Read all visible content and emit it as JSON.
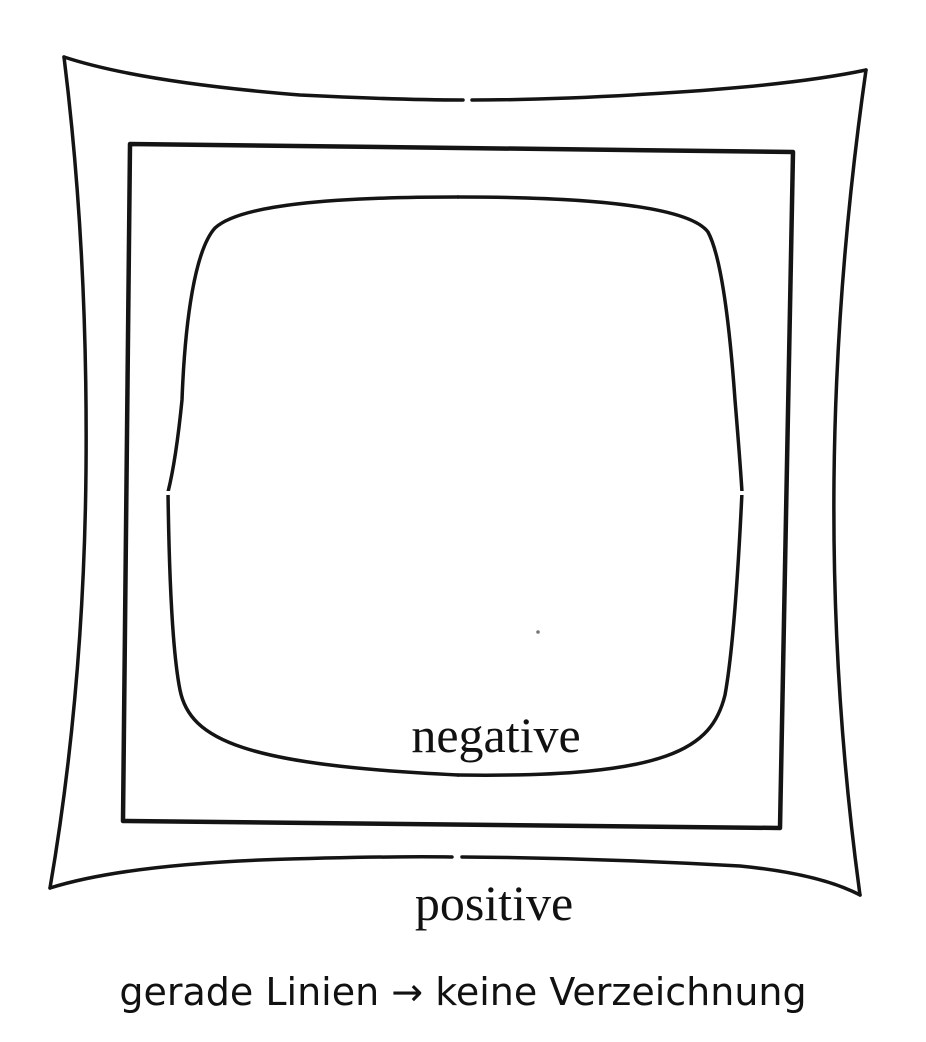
{
  "diagram": {
    "shapes": [
      {
        "name": "pincushion-distortion",
        "kind": "curved-inward"
      },
      {
        "name": "undistorted-square",
        "kind": "straight"
      },
      {
        "name": "barrel-distortion",
        "kind": "curved-outward"
      }
    ],
    "labels": {
      "negative": "negative",
      "positive": "positive"
    },
    "line_color": "#141414",
    "background_color": "#ffffff"
  },
  "caption": "gerade Linien → keine Verzeichnung"
}
